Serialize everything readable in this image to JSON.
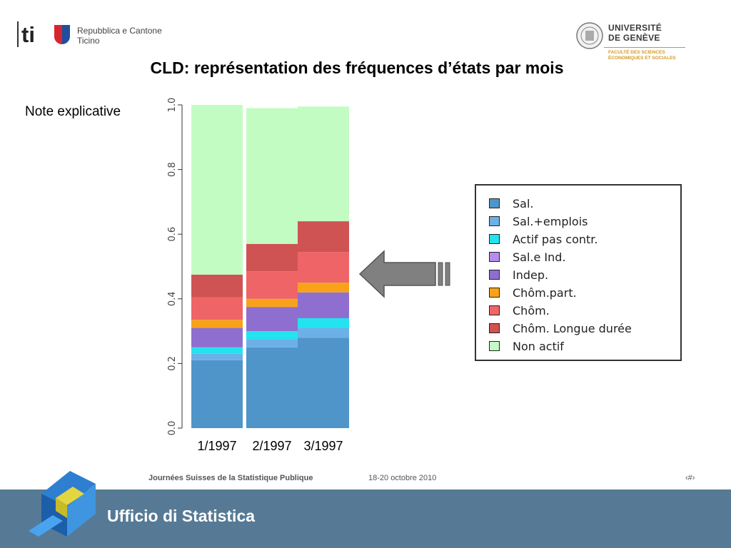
{
  "logos": {
    "ti_mark": "ti",
    "ti_text_line1": "Repubblica e Cantone",
    "ti_text_line2": "Ticino",
    "unige_line1": "UNIVERSITÉ",
    "unige_line2": "DE GENÈVE",
    "unige_faculty_line1": "FACULTÉ DES SCIENCES",
    "unige_faculty_line2": "ÉCONOMIQUES ET SOCIALES"
  },
  "slide": {
    "title": "CLD: représentation des fréquences d’états par mois",
    "note": "Note explicative"
  },
  "chart_data": {
    "type": "bar",
    "stacked": true,
    "categories": [
      "1/1997",
      "2/1997",
      "3/1997"
    ],
    "ylim": [
      0,
      1
    ],
    "yticks": [
      "0.0",
      "0.2",
      "0.4",
      "0.6",
      "0.8",
      "1.0"
    ],
    "legend_position": "right",
    "series": [
      {
        "name": "Sal.",
        "color": "#4f95c9",
        "values": [
          0.21,
          0.25,
          0.28
        ]
      },
      {
        "name": "Sal.+emplois",
        "color": "#6cb0e8",
        "values": [
          0.02,
          0.025,
          0.03
        ]
      },
      {
        "name": "Actif pas contr.",
        "color": "#22e3ee",
        "values": [
          0.02,
          0.025,
          0.03
        ]
      },
      {
        "name": "Sal.e Ind.",
        "color": "#b58cf2",
        "values": [
          0.0,
          0.0,
          0.0
        ]
      },
      {
        "name": "Indep.",
        "color": "#8e6fcf",
        "values": [
          0.06,
          0.075,
          0.08
        ]
      },
      {
        "name": "Chôm.part.",
        "color": "#f8a21a",
        "values": [
          0.025,
          0.025,
          0.03
        ]
      },
      {
        "name": "Chôm.",
        "color": "#ef6466",
        "values": [
          0.07,
          0.085,
          0.095
        ]
      },
      {
        "name": "Chôm. Longue durée",
        "color": "#cf5353",
        "values": [
          0.07,
          0.085,
          0.095
        ]
      },
      {
        "name": "Non actif",
        "color": "#c3fcc3",
        "values": [
          0.525,
          0.42,
          0.355
        ]
      }
    ]
  },
  "footer": {
    "event": "Journées Suisses de la Statistique Publique",
    "date": "18-20 octobre 2010",
    "page": "‹#›",
    "office": "Ufficio di Statistica"
  },
  "colors": {
    "footer_band": "#567a95",
    "arrow": "#808080",
    "faculty": "#d49a1e"
  }
}
